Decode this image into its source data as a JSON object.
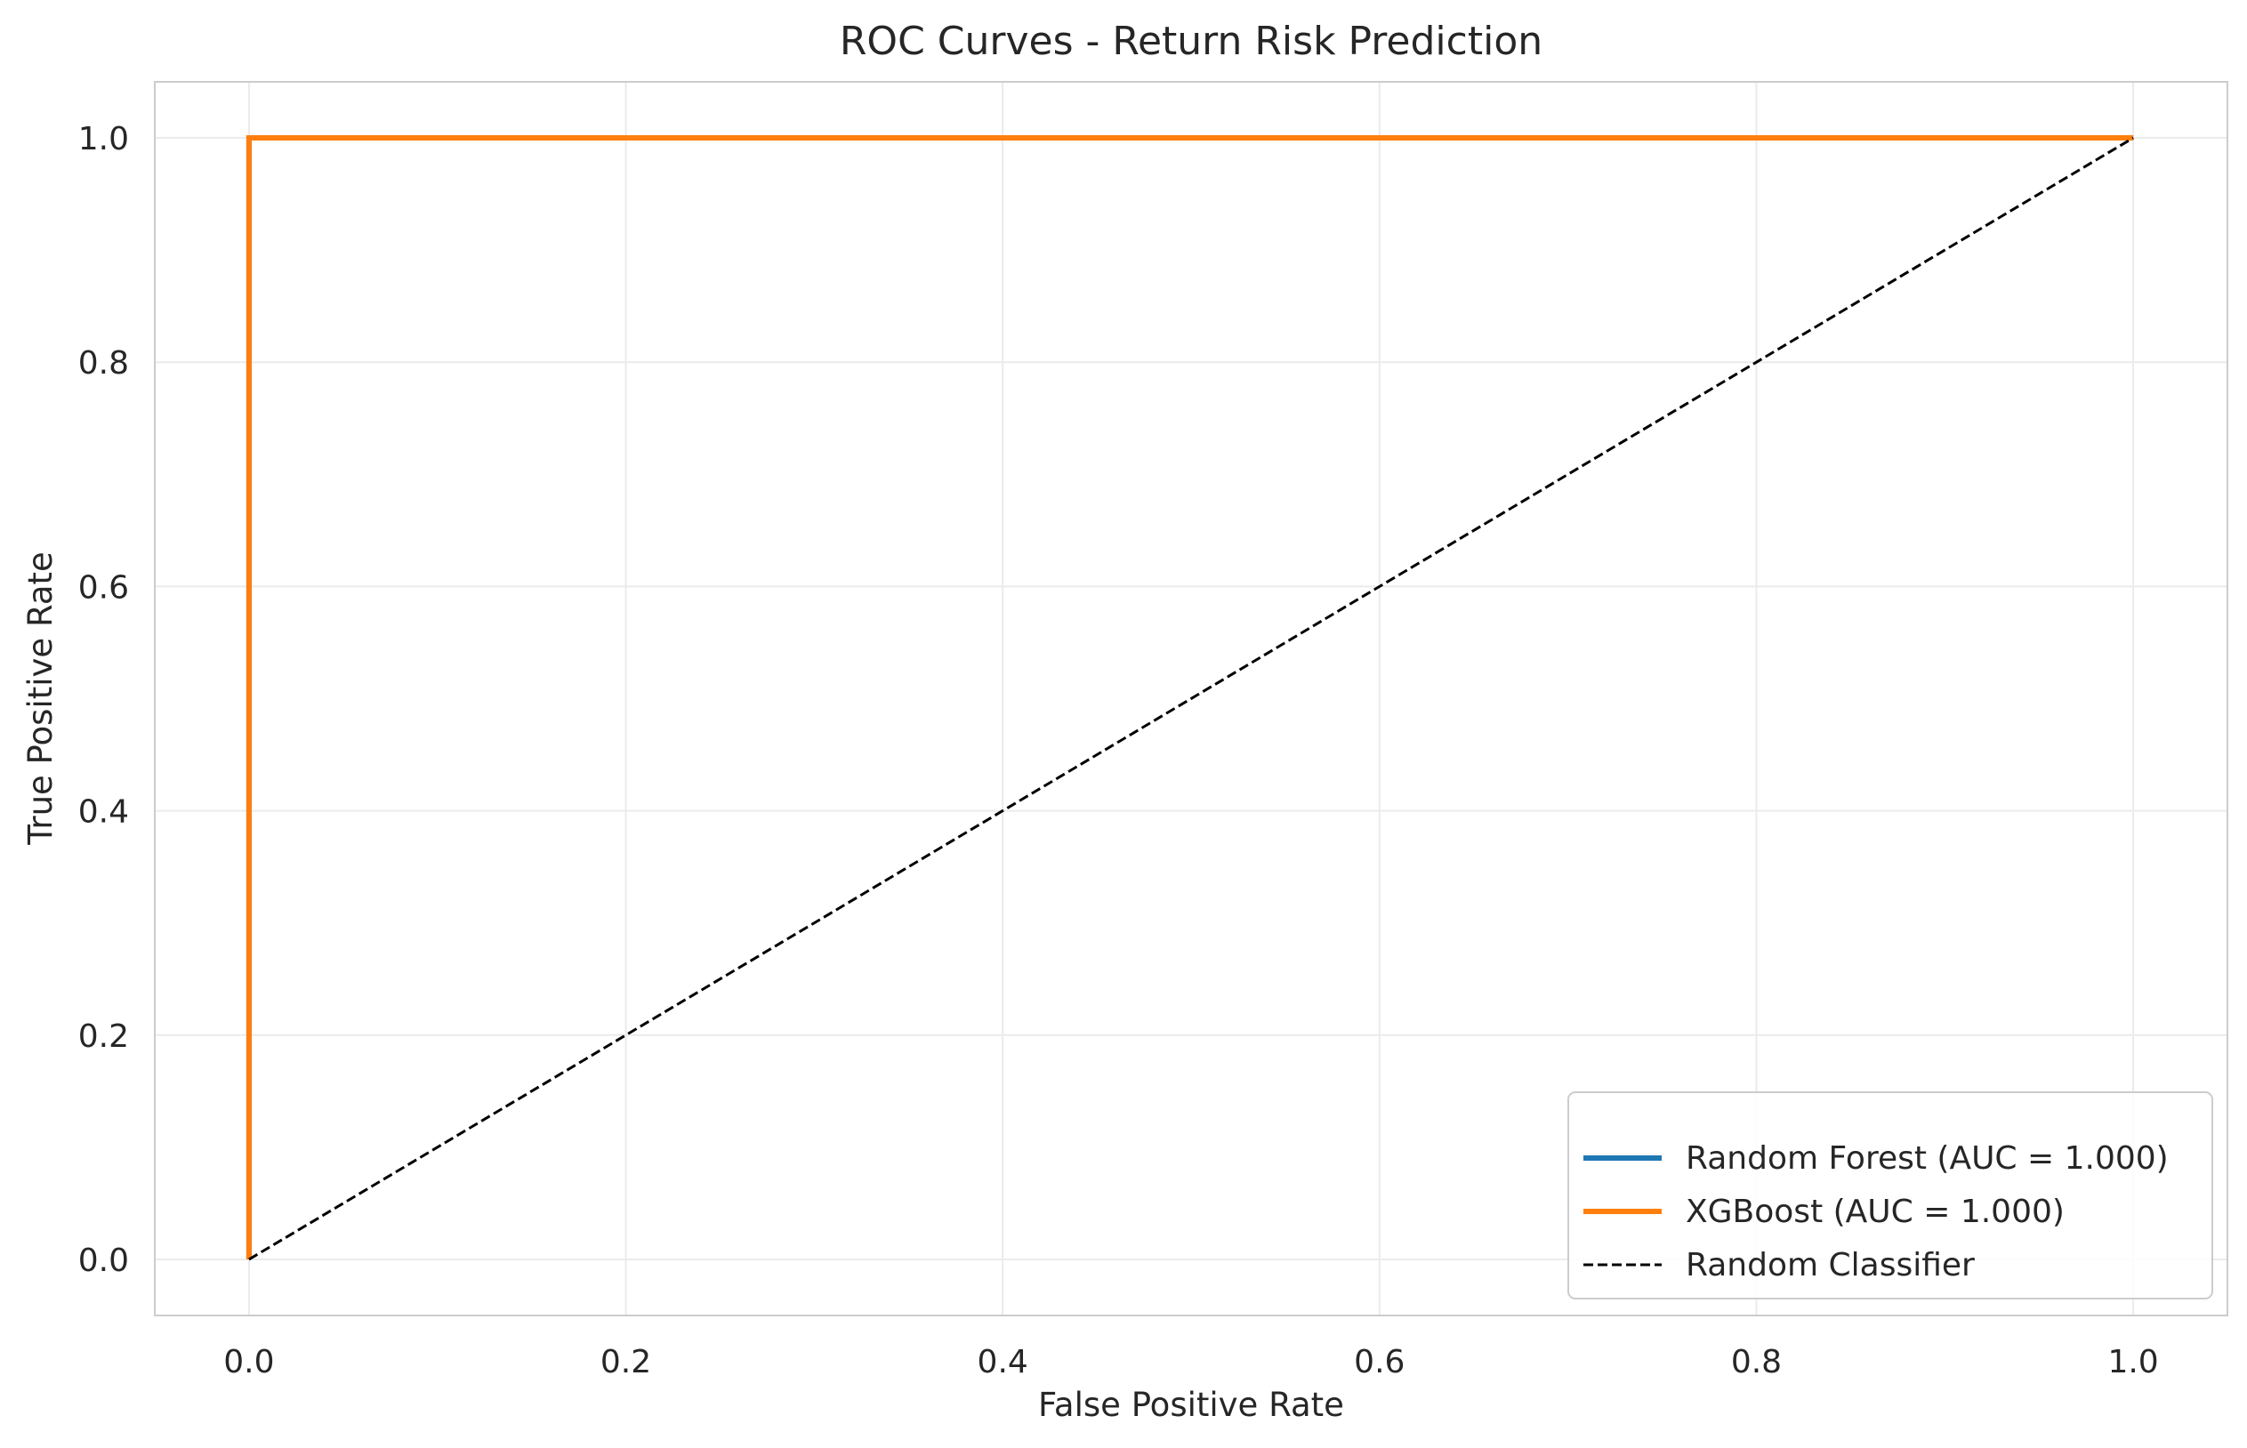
{
  "chart_data": {
    "type": "line",
    "title": "ROC Curves - Return Risk Prediction",
    "xlabel": "False Positive Rate",
    "ylabel": "True Positive Rate",
    "xlim": [
      -0.05,
      1.05
    ],
    "ylim": [
      -0.05,
      1.05
    ],
    "xticks": [
      0.0,
      0.2,
      0.4,
      0.6,
      0.8,
      1.0
    ],
    "yticks": [
      0.0,
      0.2,
      0.4,
      0.6,
      0.8,
      1.0
    ],
    "grid": true,
    "legend_position": "lower right",
    "series": [
      {
        "name": "Random Forest (AUC = 1.000)",
        "color": "#1f77b4",
        "style": "solid",
        "x": [
          0.0,
          0.0,
          1.0
        ],
        "y": [
          0.0,
          1.0,
          1.0
        ]
      },
      {
        "name": "XGBoost (AUC = 1.000)",
        "color": "#ff7f0e",
        "style": "solid",
        "x": [
          0.0,
          0.0,
          1.0
        ],
        "y": [
          0.0,
          1.0,
          1.0
        ]
      },
      {
        "name": "Random Classifier",
        "color": "#000000",
        "style": "dashed",
        "x": [
          0.0,
          1.0
        ],
        "y": [
          0.0,
          1.0
        ]
      }
    ]
  }
}
